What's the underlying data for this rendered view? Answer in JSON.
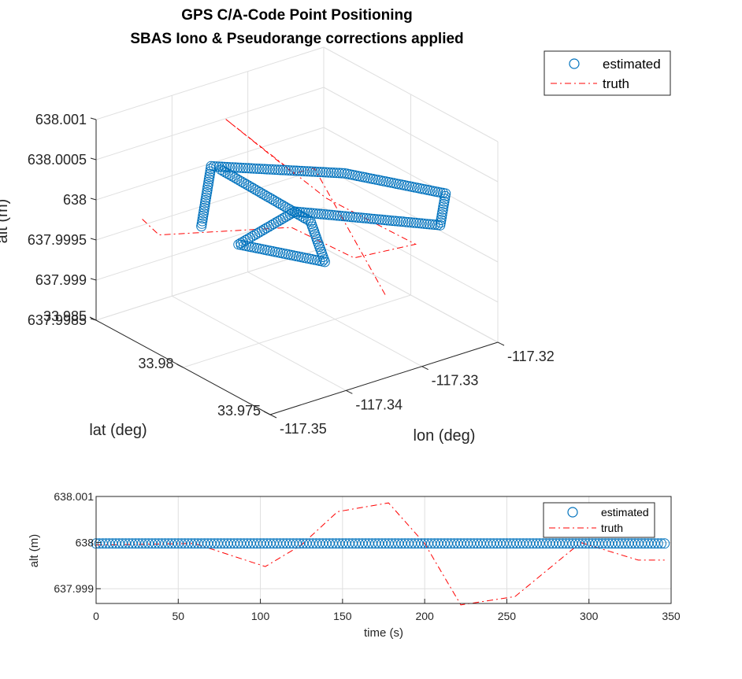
{
  "chart_data": [
    {
      "type": "scatter",
      "projection": "3d",
      "title": [
        "GPS C/A-Code Point Positioning",
        "SBAS Iono & Pseudorange corrections applied"
      ],
      "xlabel": "lon (deg)",
      "ylabel": "lat (deg)",
      "zlabel": "alt (m)",
      "xlim": [
        -117.35,
        -117.32
      ],
      "ylim": [
        33.975,
        33.985
      ],
      "zlim": [
        637.9985,
        638.001
      ],
      "xticks": [
        -117.35,
        -117.34,
        -117.33,
        -117.32
      ],
      "xtick_labels": [
        "-117.35",
        "-117.34",
        "-117.33",
        "-117.32"
      ],
      "yticks": [
        33.975,
        33.98,
        33.985
      ],
      "ytick_labels": [
        "33.975",
        "33.98",
        "33.985"
      ],
      "zticks": [
        637.9985,
        637.999,
        637.9995,
        638,
        638.0005,
        638.001
      ],
      "ztick_labels": [
        "637.9985",
        "637.999",
        "637.9995",
        "638",
        "638.0005",
        "638.001"
      ],
      "grid": true,
      "legend": "top-right",
      "series": [
        {
          "name": "estimated",
          "marker": "circle",
          "color": "#0072BD",
          "waypoints": [
            {
              "lon": -117.3453,
              "lat": 33.981,
              "alt": 638.0
            },
            {
              "lon": -117.3353,
              "lat": 33.9848,
              "alt": 638.0
            },
            {
              "lon": -117.3253,
              "lat": 33.9815,
              "alt": 638.0
            },
            {
              "lon": -117.32,
              "lat": 33.978,
              "alt": 638.0
            },
            {
              "lon": -117.3253,
              "lat": 33.976,
              "alt": 638.0
            },
            {
              "lon": -117.3353,
              "lat": 33.98,
              "alt": 638.0
            },
            {
              "lon": -117.345,
              "lat": 33.979,
              "alt": 638.0
            },
            {
              "lon": -117.3405,
              "lat": 33.976,
              "alt": 638.0
            },
            {
              "lon": -117.3355,
              "lat": 33.979,
              "alt": 638.0
            },
            {
              "lon": -117.335,
              "lat": 33.9845,
              "alt": 638.0
            }
          ]
        },
        {
          "name": "truth",
          "line": "dash-dot",
          "color": "#FF0000",
          "points3d": [
            {
              "lon": -117.3485,
              "lat": 33.983,
              "alt": 637.99995
            },
            {
              "lon": -117.344,
              "lat": 33.984,
              "alt": 637.9995
            },
            {
              "lon": -117.33,
              "lat": 33.9825,
              "alt": 637.99935
            },
            {
              "lon": -117.327,
              "lat": 33.9802,
              "alt": 637.99915
            },
            {
              "lon": -117.3235,
              "lat": 33.9782,
              "alt": 637.99945
            },
            {
              "lon": -117.33,
              "lat": 33.9805,
              "alt": 637.99995
            },
            {
              "lon": -117.333,
              "lat": 33.985,
              "alt": 638.0005
            },
            {
              "lon": -117.34,
              "lat": 33.978,
              "alt": 638.00085
            },
            {
              "lon": -117.335,
              "lat": 33.979,
              "alt": 638.00065
            },
            {
              "lon": -117.329,
              "lat": 33.9775,
              "alt": 637.99905
            }
          ]
        }
      ]
    },
    {
      "type": "line",
      "xlabel": "time (s)",
      "ylabel": "alt (m)",
      "xlim": [
        0,
        350
      ],
      "ylim": [
        637.99868,
        638.001
      ],
      "xticks": [
        0,
        50,
        100,
        150,
        200,
        250,
        300,
        350
      ],
      "xtick_labels": [
        "0",
        "50",
        "100",
        "150",
        "200",
        "250",
        "300",
        "350"
      ],
      "yticks": [
        637.999,
        638,
        638.001
      ],
      "ytick_labels": [
        "637.999",
        "638",
        "638.001"
      ],
      "grid": true,
      "legend": "top-right",
      "series": [
        {
          "name": "estimated",
          "marker": "circle",
          "color": "#0072BD",
          "x_range": [
            0,
            346
          ],
          "x_step": 2,
          "y_constant": 637.99998
        },
        {
          "name": "truth",
          "line": "dash-dot",
          "color": "#FF0000",
          "x": [
            0,
            60,
            103,
            125,
            147,
            178,
            200,
            222,
            255,
            295,
            330,
            346
          ],
          "y": [
            637.99995,
            637.99998,
            637.99948,
            637.99995,
            638.00067,
            638.00086,
            637.99998,
            637.99865,
            637.99883,
            638.0,
            637.99962,
            637.99962
          ]
        }
      ]
    }
  ]
}
